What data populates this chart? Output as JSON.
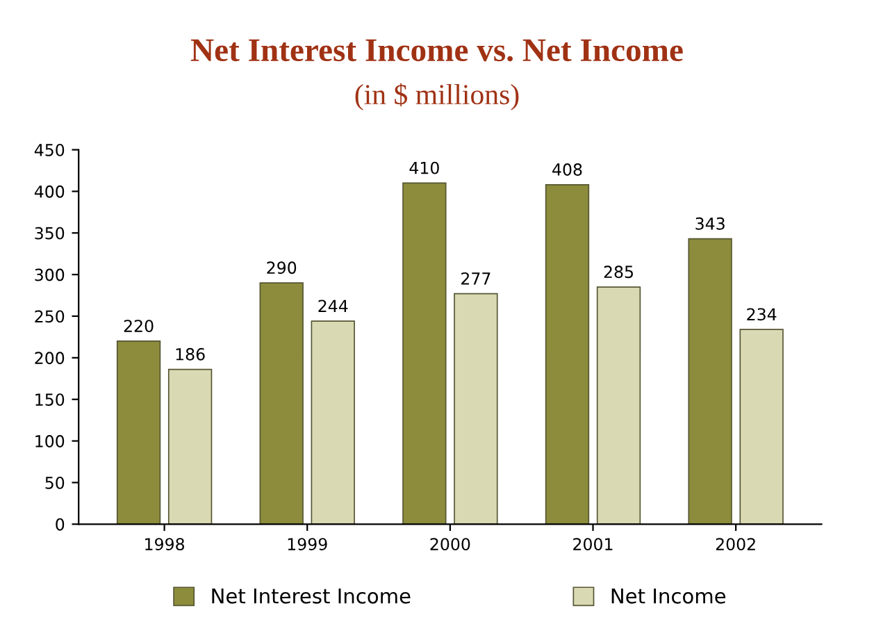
{
  "chart_data": {
    "type": "bar",
    "title": "Net Interest Income vs. Net Income",
    "subtitle": "(in $ millions)",
    "categories": [
      "1998",
      "1999",
      "2000",
      "2001",
      "2002"
    ],
    "series": [
      {
        "name": "Net Interest Income",
        "color": "#8c8c3c",
        "values": [
          220,
          290,
          410,
          408,
          343
        ]
      },
      {
        "name": "Net Income",
        "color": "#d9d9b3",
        "values": [
          186,
          244,
          277,
          285,
          234
        ]
      }
    ],
    "ylim": [
      0,
      450
    ],
    "yticks": [
      0,
      50,
      100,
      150,
      200,
      250,
      300,
      350,
      400,
      450
    ],
    "data_labels": true,
    "grid": false,
    "legend": "bottom"
  }
}
